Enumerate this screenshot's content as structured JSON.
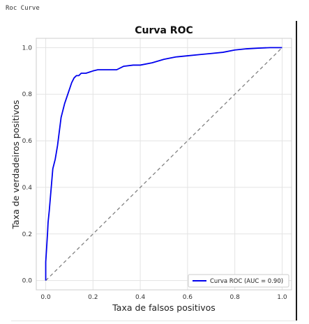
{
  "cell_caption": "Roc Curve",
  "chart_data": {
    "type": "line",
    "title": "Curva ROC",
    "xlabel": "Taxa de falsos positivos",
    "ylabel": "Taxa de verdadeiros positivos",
    "xlim": [
      -0.04,
      1.04
    ],
    "ylim": [
      -0.04,
      1.04
    ],
    "xticks": [
      0.0,
      0.2,
      0.4,
      0.6,
      0.8,
      1.0
    ],
    "yticks": [
      0.0,
      0.2,
      0.4,
      0.6,
      0.8,
      1.0
    ],
    "xtick_labels": [
      "0.0",
      "0.2",
      "0.4",
      "0.6",
      "0.8",
      "1.0"
    ],
    "ytick_labels": [
      "0.0",
      "0.2",
      "0.4",
      "0.6",
      "0.8",
      "1.0"
    ],
    "grid": true,
    "legend_position": "lower-right",
    "series": [
      {
        "name": "Curva ROC (AUC = 0.90)",
        "color": "#0000ee",
        "x": [
          0.0,
          0.0,
          0.005,
          0.008,
          0.01,
          0.015,
          0.02,
          0.025,
          0.03,
          0.035,
          0.04,
          0.045,
          0.05,
          0.055,
          0.06,
          0.065,
          0.07,
          0.075,
          0.08,
          0.09,
          0.1,
          0.11,
          0.12,
          0.13,
          0.14,
          0.15,
          0.17,
          0.2,
          0.22,
          0.25,
          0.3,
          0.33,
          0.37,
          0.4,
          0.45,
          0.5,
          0.55,
          0.6,
          0.65,
          0.7,
          0.75,
          0.8,
          0.85,
          0.9,
          0.95,
          1.0
        ],
        "y": [
          0.0,
          0.08,
          0.16,
          0.21,
          0.25,
          0.3,
          0.36,
          0.42,
          0.48,
          0.5,
          0.52,
          0.55,
          0.58,
          0.62,
          0.66,
          0.7,
          0.72,
          0.74,
          0.76,
          0.79,
          0.82,
          0.85,
          0.87,
          0.88,
          0.88,
          0.89,
          0.89,
          0.9,
          0.905,
          0.905,
          0.905,
          0.92,
          0.925,
          0.925,
          0.935,
          0.95,
          0.96,
          0.965,
          0.97,
          0.975,
          0.98,
          0.99,
          0.995,
          0.998,
          1.0,
          1.0
        ]
      },
      {
        "name": "",
        "color": "#808080",
        "dashed": true,
        "x": [
          0.0,
          1.0
        ],
        "y": [
          0.0,
          1.0
        ]
      }
    ]
  }
}
